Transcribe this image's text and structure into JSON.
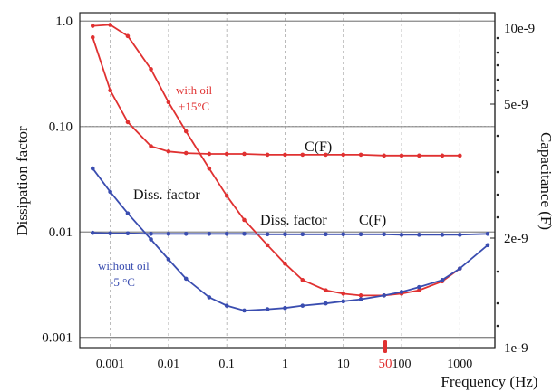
{
  "chart_data": {
    "type": "line",
    "xlabel": "Frequency (Hz)",
    "ylabel_left": "Dissipation factor",
    "ylabel_right": "Capacitance (F)",
    "x_scale": "log",
    "xlim": [
      0.0003,
      4000
    ],
    "ylim_left": [
      0.0008,
      1.2
    ],
    "left_y_scale": "log",
    "grid": true,
    "x_ticks": [
      "0.001",
      "0.01",
      "0.1",
      "1",
      "10",
      "100",
      "1000"
    ],
    "left_ticks": [
      "1.0",
      "0.10",
      "0.01",
      "0.001"
    ],
    "right_ticks": [
      "10e-9",
      "5e-9",
      "2e-9",
      "1e-9"
    ],
    "marker_50_label": "50",
    "colors": {
      "with_oil": "#e03131",
      "without_oil": "#3a4db0"
    },
    "annotations": {
      "with_oil_line1": "with oil",
      "with_oil_line2": "+15°C",
      "without_oil_line1": "without oil",
      "without_oil_line2": "-5 °C",
      "cf_top": "C(F)",
      "cf_bottom": "C(F)",
      "diss_blue": "Diss. factor",
      "diss_red": "Diss. factor"
    },
    "series": [
      {
        "name": "with oil +15°C Diss. factor",
        "color": "#e03131",
        "x": [
          0.0005,
          0.001,
          0.002,
          0.005,
          0.01,
          0.02,
          0.05,
          0.1,
          0.2,
          0.5,
          1,
          2,
          5,
          10,
          20,
          50,
          100,
          200,
          500,
          1000
        ],
        "y": [
          0.9,
          0.92,
          0.72,
          0.35,
          0.17,
          0.09,
          0.04,
          0.022,
          0.013,
          0.0075,
          0.005,
          0.0035,
          0.0028,
          0.0026,
          0.0025,
          0.0025,
          0.0026,
          0.0028,
          0.0034,
          0.0045
        ]
      },
      {
        "name": "with oil +15°C C(F)",
        "color": "#e03131",
        "x": [
          0.0005,
          0.001,
          0.002,
          0.005,
          0.01,
          0.02,
          0.05,
          0.1,
          0.2,
          0.5,
          1,
          2,
          5,
          10,
          20,
          50,
          100,
          200,
          500,
          1000
        ],
        "y": [
          0.7,
          0.22,
          0.11,
          0.065,
          0.058,
          0.056,
          0.055,
          0.055,
          0.055,
          0.054,
          0.054,
          0.054,
          0.054,
          0.054,
          0.054,
          0.053,
          0.053,
          0.053,
          0.053,
          0.053
        ]
      },
      {
        "name": "without oil -5 °C Diss. factor",
        "color": "#3a4db0",
        "x": [
          0.0005,
          0.001,
          0.002,
          0.005,
          0.01,
          0.02,
          0.05,
          0.1,
          0.2,
          0.5,
          1,
          2,
          5,
          10,
          20,
          50,
          100,
          200,
          500,
          1000,
          3000
        ],
        "y": [
          0.04,
          0.024,
          0.015,
          0.0085,
          0.0055,
          0.0036,
          0.0024,
          0.002,
          0.0018,
          0.00185,
          0.0019,
          0.002,
          0.0021,
          0.0022,
          0.0023,
          0.0025,
          0.0027,
          0.003,
          0.0035,
          0.0045,
          0.0075
        ]
      },
      {
        "name": "without oil -5 °C C(F)",
        "color": "#3a4db0",
        "x": [
          0.0005,
          0.001,
          0.002,
          0.005,
          0.01,
          0.02,
          0.05,
          0.1,
          0.2,
          0.5,
          1,
          2,
          5,
          10,
          20,
          50,
          100,
          200,
          500,
          1000,
          3000
        ],
        "y": [
          0.0098,
          0.0097,
          0.0097,
          0.0096,
          0.0096,
          0.0096,
          0.0096,
          0.0096,
          0.0096,
          0.0095,
          0.0095,
          0.0095,
          0.0095,
          0.0095,
          0.0095,
          0.0095,
          0.0094,
          0.0094,
          0.0094,
          0.0094,
          0.0096
        ]
      }
    ]
  }
}
